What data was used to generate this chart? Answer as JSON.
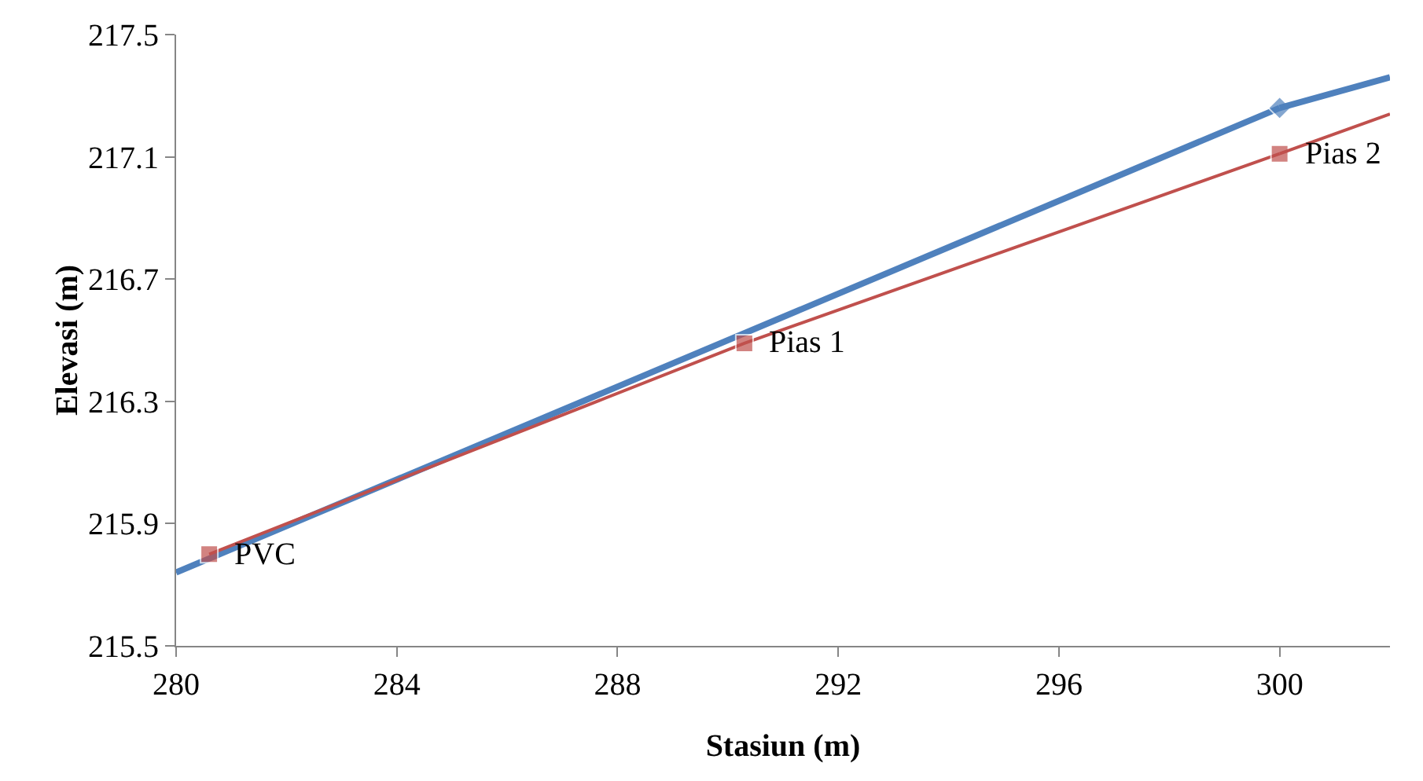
{
  "chart_data": {
    "type": "line",
    "xlabel": "Stasiun (m)",
    "ylabel": "Elevasi (m)",
    "xlim": [
      280,
      302
    ],
    "xticks": [
      280,
      284,
      288,
      292,
      296,
      300
    ],
    "ylim": [
      215.5,
      217.5
    ],
    "yticks": [
      215.5,
      215.9,
      216.3,
      216.7,
      217.1,
      217.5
    ],
    "grid": false,
    "series": [
      {
        "color": "#4f81bd",
        "x": [
          280,
          300
        ],
        "values": [
          215.74,
          217.26
        ],
        "marker": "diamond"
      },
      {
        "color": "#4f81bd",
        "x": [
          300,
          302
        ],
        "values": [
          217.26,
          217.36
        ],
        "marker": "none"
      },
      {
        "color": "#c0504d",
        "x": [
          280.6,
          290.3,
          300
        ],
        "values": [
          215.8,
          216.49,
          217.11
        ],
        "marker": "square"
      },
      {
        "color": "#c0504d",
        "x": [
          300,
          302
        ],
        "values": [
          217.11,
          217.24
        ],
        "marker": "none"
      }
    ],
    "annotations": [
      {
        "text": "PVC",
        "x": 280.6,
        "y": 215.8
      },
      {
        "text": "Pias 1",
        "x": 290.3,
        "y": 216.49
      },
      {
        "text": "Pias 2",
        "x": 300,
        "y": 217.11
      }
    ]
  }
}
